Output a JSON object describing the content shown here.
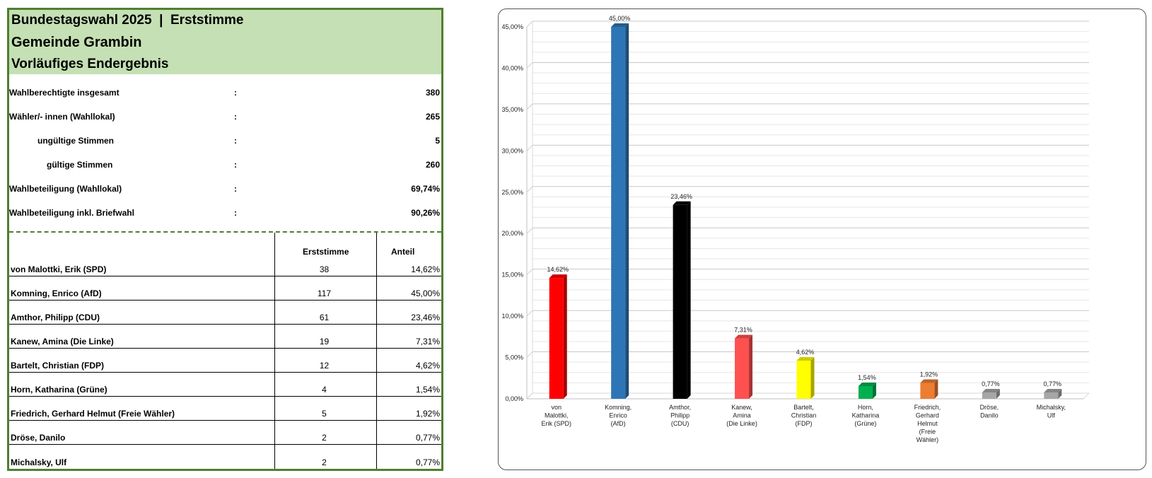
{
  "header": {
    "title_line": "Bundestagswahl 2025  |  Erststimme",
    "municipality": "Gemeinde Grambin",
    "status": "Vorläufiges Endergebnis"
  },
  "stats": [
    {
      "label": "Wahlberechtigte insgesamt",
      "colon": ":",
      "value": "380",
      "indent": false
    },
    {
      "label": "Wähler/- innen (Wahllokal)",
      "colon": ":",
      "value": "265",
      "indent": false
    },
    {
      "label": "ungültige Stimmen",
      "colon": ":",
      "value": "5",
      "indent": "1"
    },
    {
      "label": "gültige Stimmen",
      "colon": ":",
      "value": "260",
      "indent": "2"
    },
    {
      "label": "Wahlbeteiligung (Wahllokal)",
      "colon": ":",
      "value": "69,74%",
      "indent": false
    },
    {
      "label": "Wahlbeteiligung inkl. Briefwahl",
      "colon": ":",
      "value": "90,26%",
      "indent": false
    }
  ],
  "table": {
    "col_votes": "Erststimme",
    "col_share": "Anteil",
    "rows": [
      {
        "candidate": "von Malottki, Erik (SPD)",
        "votes": "38",
        "share": "14,62%"
      },
      {
        "candidate": "Komning, Enrico (AfD)",
        "votes": "117",
        "share": "45,00%"
      },
      {
        "candidate": "Amthor, Philipp (CDU)",
        "votes": "61",
        "share": "23,46%"
      },
      {
        "candidate": "Kanew, Amina (Die Linke)",
        "votes": "19",
        "share": "7,31%"
      },
      {
        "candidate": "Bartelt, Christian (FDP)",
        "votes": "12",
        "share": "4,62%"
      },
      {
        "candidate": "Horn, Katharina (Grüne)",
        "votes": "4",
        "share": "1,54%"
      },
      {
        "candidate": "Friedrich, Gerhard Helmut (Freie Wähler)",
        "votes": "5",
        "share": "1,92%"
      },
      {
        "candidate": "Dröse, Danilo",
        "votes": "2",
        "share": "0,77%"
      },
      {
        "candidate": "Michalsky, Ulf",
        "votes": "2",
        "share": "0,77%"
      }
    ]
  },
  "chart_data": {
    "type": "bar",
    "title": "",
    "xlabel": "",
    "ylabel": "",
    "ylim": [
      0,
      45
    ],
    "yticks": [
      "0,00%",
      "5,00%",
      "10,00%",
      "15,00%",
      "20,00%",
      "25,00%",
      "30,00%",
      "35,00%",
      "40,00%",
      "45,00%"
    ],
    "grid": true,
    "legend": "none",
    "categories": [
      [
        "von",
        "Malottki,",
        "Erik (SPD)"
      ],
      [
        "Komning,",
        "Enrico",
        "(AfD)"
      ],
      [
        "Amthor,",
        "Philipp",
        "(CDU)"
      ],
      [
        "Kanew,",
        "Amina",
        "(Die Linke)"
      ],
      [
        "Bartelt,",
        "Christian",
        "(FDP)"
      ],
      [
        "Horn,",
        "Katharina",
        "(Grüne)"
      ],
      [
        "Friedrich,",
        "Gerhard",
        "Helmut",
        "(Freie",
        "Wähler)"
      ],
      [
        "Dröse,",
        "Danilo"
      ],
      [
        "Michalsky,",
        "Ulf"
      ]
    ],
    "values": [
      14.62,
      45.0,
      23.46,
      7.31,
      4.62,
      1.54,
      1.92,
      0.77,
      0.77
    ],
    "labels": [
      "14,62%",
      "45,00%",
      "23,46%",
      "7,31%",
      "4,62%",
      "1,54%",
      "1,92%",
      "0,77%",
      "0,77%"
    ],
    "colors": [
      "#ff0000",
      "#2e75b6",
      "#000000",
      "#ff5050",
      "#ffff00",
      "#00b050",
      "#ed7d31",
      "#a6a6a6",
      "#a6a6a6"
    ]
  }
}
